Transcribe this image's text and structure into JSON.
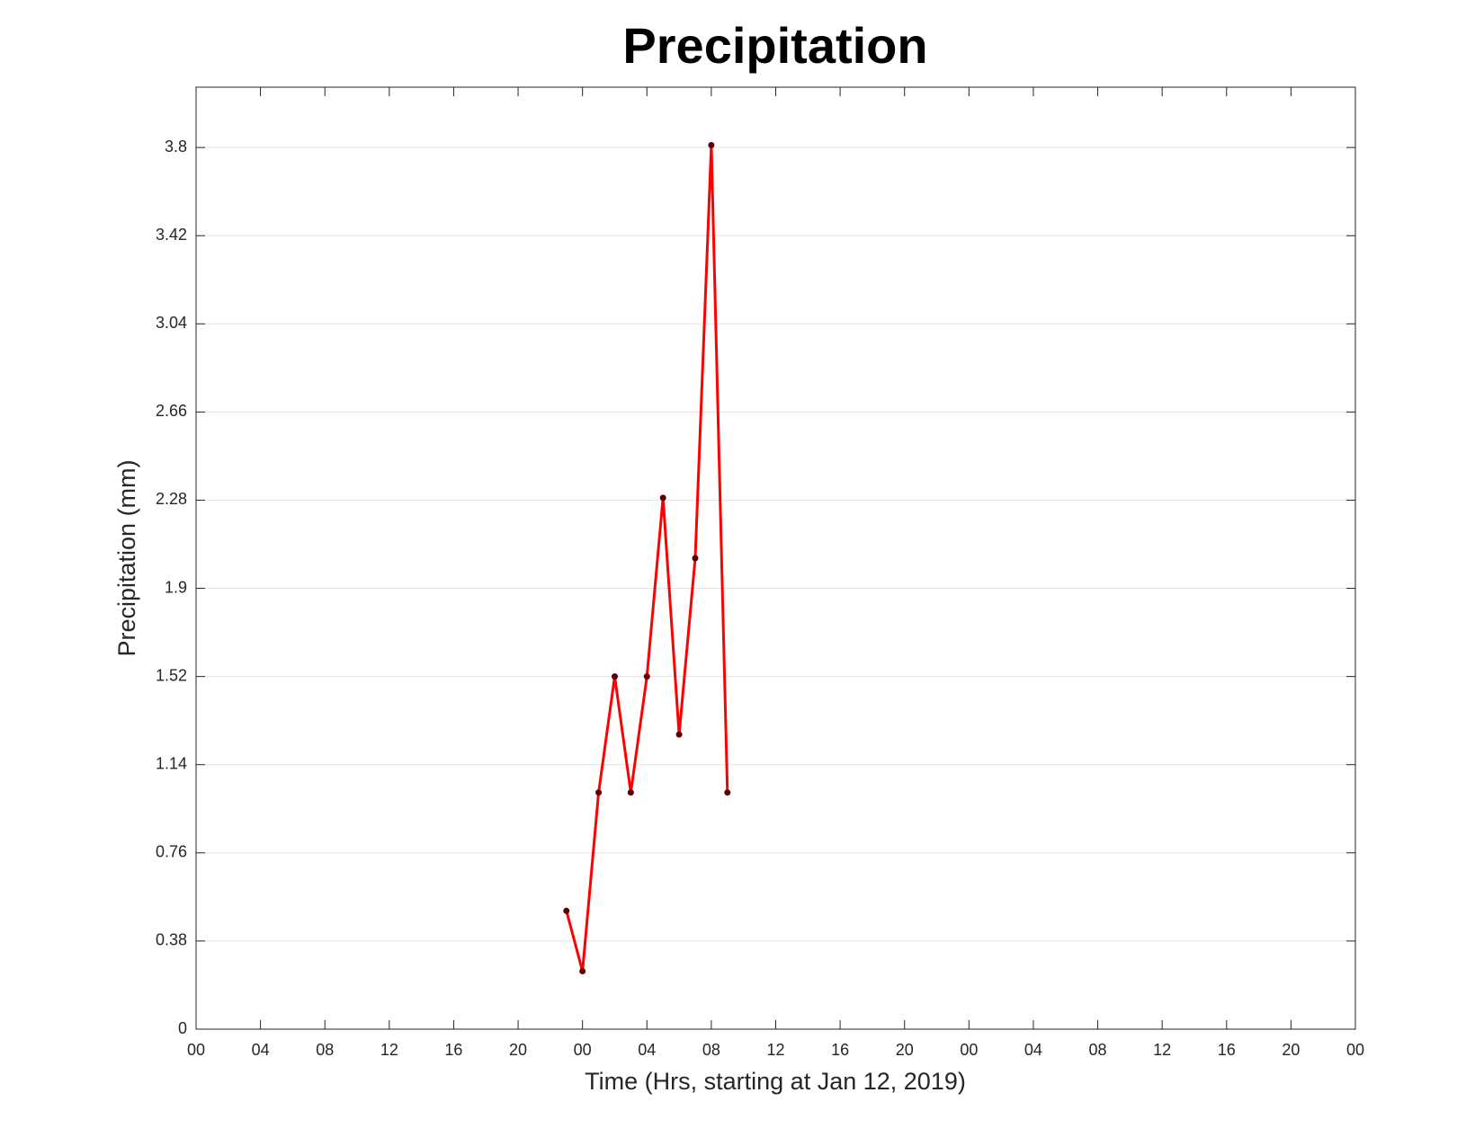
{
  "chart_data": {
    "type": "line",
    "title": "Precipitation",
    "xlabel": "Time (Hrs, starting at Jan 12, 2019)",
    "ylabel": "Precipitation (mm)",
    "x": [
      23,
      24,
      25,
      26,
      27,
      28,
      29,
      30,
      31,
      32,
      33
    ],
    "series": [
      {
        "name": "Precipitation",
        "color": "#ff0000",
        "marker_color": "#5a0000",
        "values": [
          0.51,
          0.25,
          1.02,
          1.52,
          1.02,
          1.52,
          2.29,
          1.27,
          2.03,
          3.81,
          1.02
        ]
      }
    ],
    "xlim": [
      0,
      72
    ],
    "xticks": [
      {
        "value": 0,
        "label": "00"
      },
      {
        "value": 4,
        "label": "04"
      },
      {
        "value": 8,
        "label": "08"
      },
      {
        "value": 12,
        "label": "12"
      },
      {
        "value": 16,
        "label": "16"
      },
      {
        "value": 20,
        "label": "20"
      },
      {
        "value": 24,
        "label": "00"
      },
      {
        "value": 28,
        "label": "04"
      },
      {
        "value": 32,
        "label": "08"
      },
      {
        "value": 36,
        "label": "12"
      },
      {
        "value": 40,
        "label": "16"
      },
      {
        "value": 44,
        "label": "20"
      },
      {
        "value": 48,
        "label": "00"
      },
      {
        "value": 52,
        "label": "04"
      },
      {
        "value": 56,
        "label": "08"
      },
      {
        "value": 60,
        "label": "12"
      },
      {
        "value": 64,
        "label": "16"
      },
      {
        "value": 68,
        "label": "20"
      },
      {
        "value": 72,
        "label": "00"
      }
    ],
    "ylim": [
      0,
      4.06
    ],
    "yticks": [
      0,
      0.38,
      0.76,
      1.14,
      1.52,
      1.9,
      2.28,
      2.66,
      3.04,
      3.42,
      3.8
    ],
    "grid": "y"
  }
}
